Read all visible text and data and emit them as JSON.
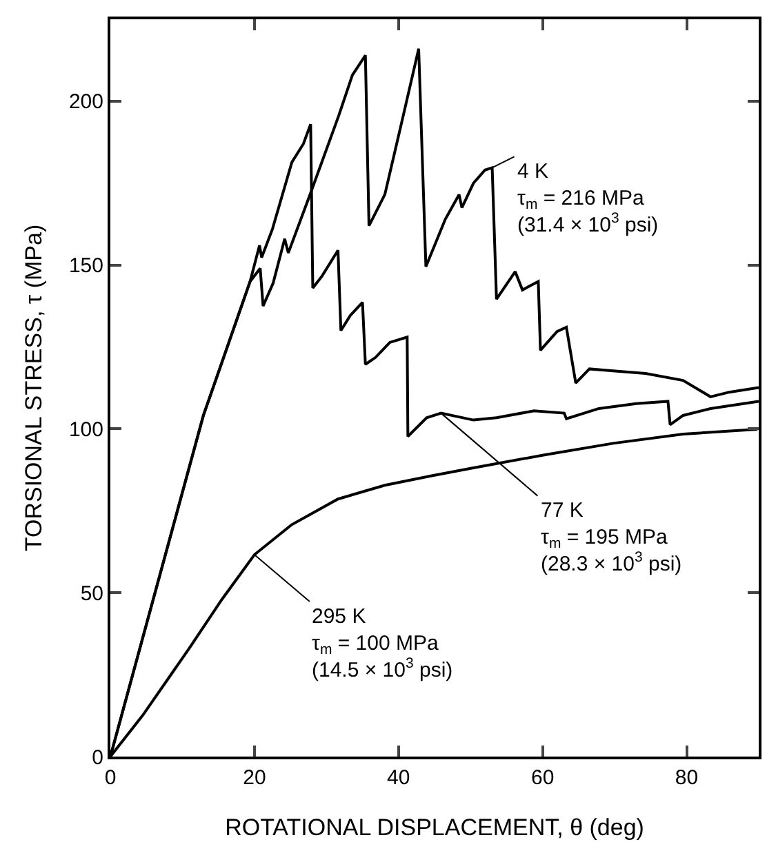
{
  "chart_data": {
    "type": "line",
    "xlabel": "ROTATIONAL DISPLACEMENT, θ (deg)",
    "ylabel": "TORSIONAL STRESS, τ (MPa)",
    "xlim": [
      0,
      90
    ],
    "ylim": [
      0,
      225
    ],
    "xticks": [
      0,
      20,
      40,
      60,
      80
    ],
    "yticks": [
      0,
      50,
      100,
      150,
      200
    ],
    "marker": "none",
    "line_style": "solid",
    "series": [
      {
        "color": "#000000",
        "x": [
          0,
          12.9,
          19.4,
          20.8,
          21.2,
          22.6,
          24.2,
          24.7,
          27.8,
          31.7,
          33.6,
          35.4,
          35.9,
          38.1,
          40.7,
          42.8,
          43.8,
          46.5,
          48.4,
          48.8,
          50.4,
          52,
          53,
          53.6,
          56.2,
          57.2,
          59.4,
          59.7,
          62,
          63.3,
          64.6,
          66.5,
          70.4,
          74.3,
          79.5,
          83.3,
          85.9,
          90
        ],
        "values": [
          0,
          104,
          145,
          149,
          137.5,
          144.5,
          158,
          153.7,
          172,
          195.6,
          208,
          214,
          162,
          171.5,
          196,
          216,
          149.5,
          164,
          171.5,
          167.5,
          175,
          179,
          179.7,
          139.6,
          148,
          142.4,
          145,
          124,
          129.7,
          131,
          114,
          118.3,
          117.6,
          116.9,
          114.8,
          109.8,
          111.2,
          112.6
        ]
      },
      {
        "color": "#000000",
        "x": [
          0,
          12.9,
          19.4,
          20.7,
          21,
          22.5,
          25.2,
          26.8,
          27.8,
          28.1,
          29.4,
          31.6,
          32,
          33.3,
          35,
          35.4,
          36.8,
          38.8,
          41.2,
          41.3,
          43.9,
          45.9,
          50.4,
          53.6,
          58.8,
          63,
          63.3,
          67.8,
          73,
          77.4,
          77.7,
          79.5,
          83.3,
          90
        ],
        "values": [
          0,
          104,
          145,
          156,
          152.3,
          161,
          181.4,
          187,
          193,
          143,
          146.7,
          154.5,
          130,
          134.6,
          138.6,
          119.7,
          121.8,
          126.4,
          128,
          97.7,
          103.4,
          104.8,
          102.7,
          103.4,
          105.5,
          104.8,
          103.1,
          106.2,
          107.7,
          108.4,
          101.3,
          104.1,
          106.2,
          108.4
        ]
      },
      {
        "color": "#000000",
        "x": [
          0,
          4.5,
          11,
          15.5,
          20,
          25.2,
          31.6,
          38.1,
          44.6,
          50.4,
          60.1,
          69.8,
          79.5,
          89.8
        ],
        "values": [
          0,
          12.6,
          33.2,
          48,
          61.6,
          70.8,
          78.6,
          82.8,
          85.7,
          88.1,
          92,
          95.6,
          98.4,
          99.9
        ]
      }
    ],
    "annotations": [
      {
        "text": "4 K\nτ$_{m}$ = 216 MPa\n(31.4 × 10$^{3}$ psi)",
        "x": 53,
        "y": 179.7
      },
      {
        "text": "77 K\nτ$_{m}$ = 195 MPa\n(28.3 × 10$^{3}$ psi)",
        "x": 45.9,
        "y": 104.8
      },
      {
        "text": "295 K\nτ$_{m}$ = 100 MPa\n(14.5 × 10$^{3}$ psi)",
        "x": 20,
        "y": 61.6
      }
    ]
  }
}
